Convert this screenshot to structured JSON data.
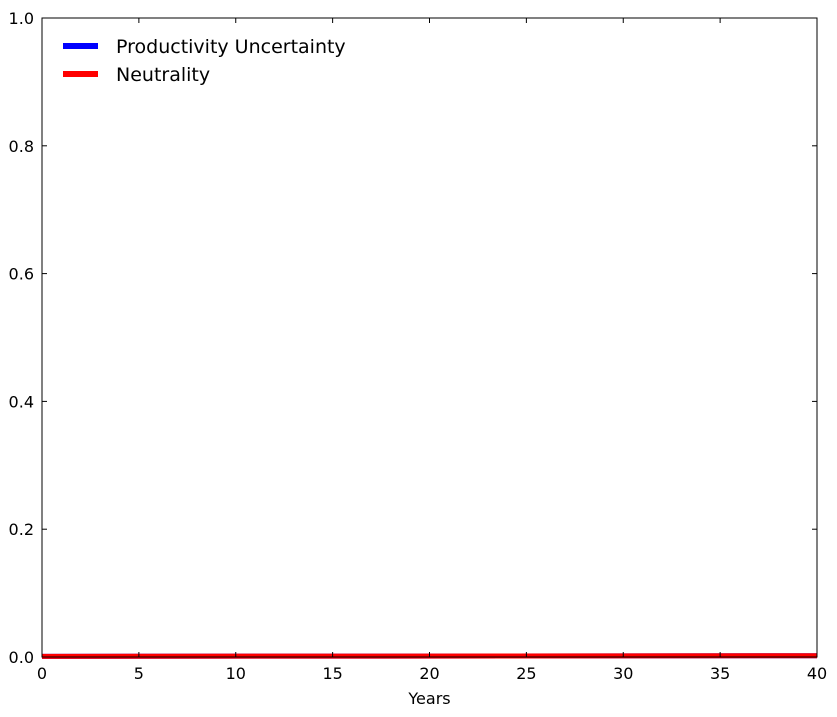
{
  "chart_data": {
    "type": "line",
    "title": "",
    "xlabel": "Years",
    "ylabel": "",
    "xlim": [
      0,
      40
    ],
    "ylim": [
      0,
      1
    ],
    "xticks": [
      0,
      5,
      10,
      15,
      20,
      25,
      30,
      35,
      40
    ],
    "xtick_labels": [
      "0",
      "5",
      "10",
      "15",
      "20",
      "25",
      "30",
      "35",
      "40"
    ],
    "yticks": [
      0,
      0.2,
      0.4,
      0.6,
      0.8,
      1.0
    ],
    "ytick_labels": [
      "0.0",
      "0.2",
      "0.4",
      "0.6",
      "0.8",
      "1.0"
    ],
    "grid": false,
    "legend_position": "top-left",
    "series": [
      {
        "name": "Productivity Uncertainty",
        "color": "#0000ff",
        "x": [
          0,
          40
        ],
        "y": [
          0.001,
          0.002
        ]
      },
      {
        "name": "Neutrality",
        "color": "#ff0000",
        "x": [
          0,
          40
        ],
        "y": [
          0.001,
          0.002
        ]
      }
    ]
  }
}
